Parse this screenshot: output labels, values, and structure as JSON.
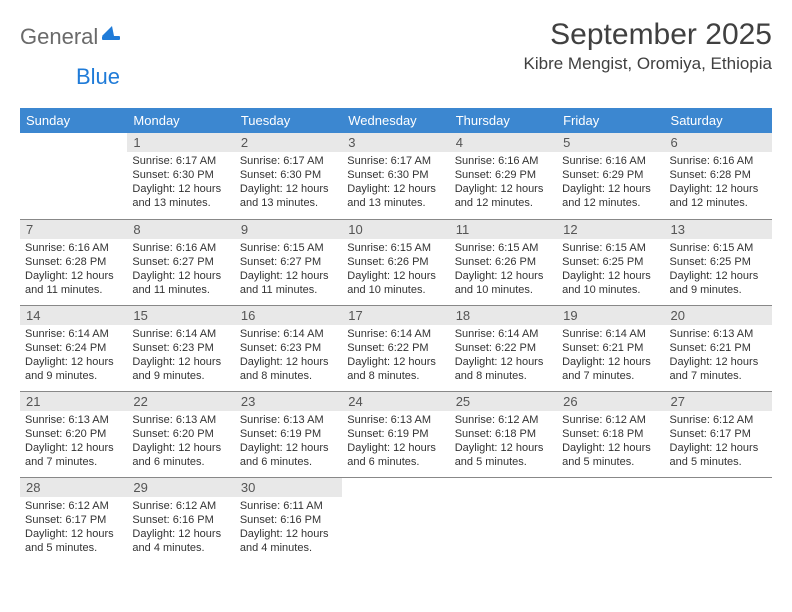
{
  "brand": {
    "text1": "General",
    "text2": "Blue"
  },
  "title": "September 2025",
  "location": "Kibre Mengist, Oromiya, Ethiopia",
  "colors": {
    "header_bg": "#3c87d0",
    "header_fg": "#ffffff",
    "daynum_bg": "#e8e8e8",
    "row_border": "#888888",
    "brand_blue": "#1f7bd8",
    "brand_gray": "#6a6a6a",
    "page_bg": "#ffffff",
    "text": "#333333"
  },
  "day_headers": [
    "Sunday",
    "Monday",
    "Tuesday",
    "Wednesday",
    "Thursday",
    "Friday",
    "Saturday"
  ],
  "weeks": [
    [
      null,
      {
        "n": "1",
        "sunrise": "6:17 AM",
        "sunset": "6:30 PM",
        "daylight": "12 hours and 13 minutes."
      },
      {
        "n": "2",
        "sunrise": "6:17 AM",
        "sunset": "6:30 PM",
        "daylight": "12 hours and 13 minutes."
      },
      {
        "n": "3",
        "sunrise": "6:17 AM",
        "sunset": "6:30 PM",
        "daylight": "12 hours and 13 minutes."
      },
      {
        "n": "4",
        "sunrise": "6:16 AM",
        "sunset": "6:29 PM",
        "daylight": "12 hours and 12 minutes."
      },
      {
        "n": "5",
        "sunrise": "6:16 AM",
        "sunset": "6:29 PM",
        "daylight": "12 hours and 12 minutes."
      },
      {
        "n": "6",
        "sunrise": "6:16 AM",
        "sunset": "6:28 PM",
        "daylight": "12 hours and 12 minutes."
      }
    ],
    [
      {
        "n": "7",
        "sunrise": "6:16 AM",
        "sunset": "6:28 PM",
        "daylight": "12 hours and 11 minutes."
      },
      {
        "n": "8",
        "sunrise": "6:16 AM",
        "sunset": "6:27 PM",
        "daylight": "12 hours and 11 minutes."
      },
      {
        "n": "9",
        "sunrise": "6:15 AM",
        "sunset": "6:27 PM",
        "daylight": "12 hours and 11 minutes."
      },
      {
        "n": "10",
        "sunrise": "6:15 AM",
        "sunset": "6:26 PM",
        "daylight": "12 hours and 10 minutes."
      },
      {
        "n": "11",
        "sunrise": "6:15 AM",
        "sunset": "6:26 PM",
        "daylight": "12 hours and 10 minutes."
      },
      {
        "n": "12",
        "sunrise": "6:15 AM",
        "sunset": "6:25 PM",
        "daylight": "12 hours and 10 minutes."
      },
      {
        "n": "13",
        "sunrise": "6:15 AM",
        "sunset": "6:25 PM",
        "daylight": "12 hours and 9 minutes."
      }
    ],
    [
      {
        "n": "14",
        "sunrise": "6:14 AM",
        "sunset": "6:24 PM",
        "daylight": "12 hours and 9 minutes."
      },
      {
        "n": "15",
        "sunrise": "6:14 AM",
        "sunset": "6:23 PM",
        "daylight": "12 hours and 9 minutes."
      },
      {
        "n": "16",
        "sunrise": "6:14 AM",
        "sunset": "6:23 PM",
        "daylight": "12 hours and 8 minutes."
      },
      {
        "n": "17",
        "sunrise": "6:14 AM",
        "sunset": "6:22 PM",
        "daylight": "12 hours and 8 minutes."
      },
      {
        "n": "18",
        "sunrise": "6:14 AM",
        "sunset": "6:22 PM",
        "daylight": "12 hours and 8 minutes."
      },
      {
        "n": "19",
        "sunrise": "6:14 AM",
        "sunset": "6:21 PM",
        "daylight": "12 hours and 7 minutes."
      },
      {
        "n": "20",
        "sunrise": "6:13 AM",
        "sunset": "6:21 PM",
        "daylight": "12 hours and 7 minutes."
      }
    ],
    [
      {
        "n": "21",
        "sunrise": "6:13 AM",
        "sunset": "6:20 PM",
        "daylight": "12 hours and 7 minutes."
      },
      {
        "n": "22",
        "sunrise": "6:13 AM",
        "sunset": "6:20 PM",
        "daylight": "12 hours and 6 minutes."
      },
      {
        "n": "23",
        "sunrise": "6:13 AM",
        "sunset": "6:19 PM",
        "daylight": "12 hours and 6 minutes."
      },
      {
        "n": "24",
        "sunrise": "6:13 AM",
        "sunset": "6:19 PM",
        "daylight": "12 hours and 6 minutes."
      },
      {
        "n": "25",
        "sunrise": "6:12 AM",
        "sunset": "6:18 PM",
        "daylight": "12 hours and 5 minutes."
      },
      {
        "n": "26",
        "sunrise": "6:12 AM",
        "sunset": "6:18 PM",
        "daylight": "12 hours and 5 minutes."
      },
      {
        "n": "27",
        "sunrise": "6:12 AM",
        "sunset": "6:17 PM",
        "daylight": "12 hours and 5 minutes."
      }
    ],
    [
      {
        "n": "28",
        "sunrise": "6:12 AM",
        "sunset": "6:17 PM",
        "daylight": "12 hours and 5 minutes."
      },
      {
        "n": "29",
        "sunrise": "6:12 AM",
        "sunset": "6:16 PM",
        "daylight": "12 hours and 4 minutes."
      },
      {
        "n": "30",
        "sunrise": "6:11 AM",
        "sunset": "6:16 PM",
        "daylight": "12 hours and 4 minutes."
      },
      null,
      null,
      null,
      null
    ]
  ],
  "labels": {
    "sunrise": "Sunrise:",
    "sunset": "Sunset:",
    "daylight": "Daylight:"
  }
}
